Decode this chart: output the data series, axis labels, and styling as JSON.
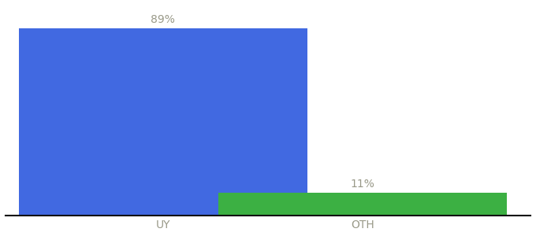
{
  "categories": [
    "UY",
    "OTH"
  ],
  "values": [
    89,
    11
  ],
  "bar_colors": [
    "#4169e1",
    "#3cb043"
  ],
  "value_labels": [
    "89%",
    "11%"
  ],
  "background_color": "#ffffff",
  "ylim": [
    0,
    100
  ],
  "bar_width": 0.55,
  "label_fontsize": 10,
  "tick_fontsize": 10,
  "label_color": "#999988",
  "bar_positions": [
    0.3,
    0.68
  ],
  "xlim": [
    0.0,
    1.0
  ]
}
